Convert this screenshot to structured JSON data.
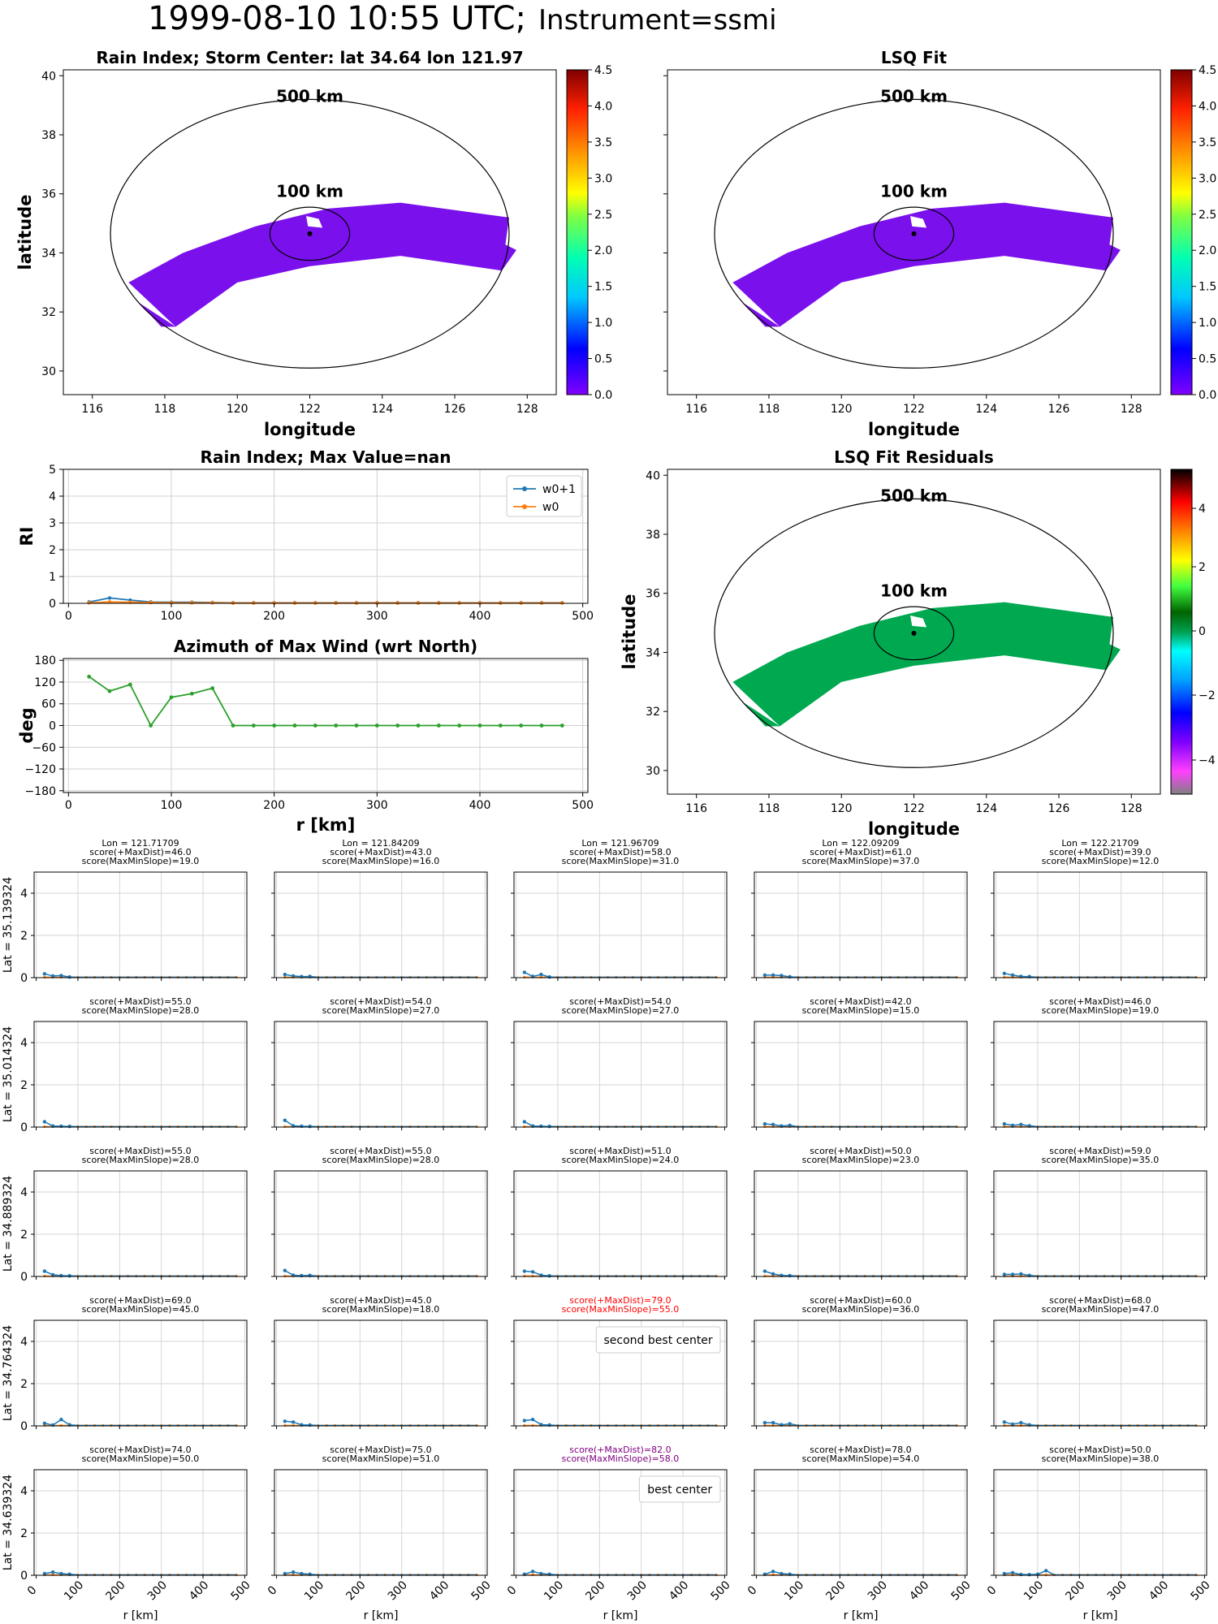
{
  "figure": {
    "title_main": "1999-08-10 10:55 UTC;",
    "title_instr": "Instrument=ssmi"
  },
  "chart_data": [
    {
      "id": "rain-index-map",
      "type": "heatmap",
      "title": "Rain Index; Storm Center: lat 34.64 lon 121.97",
      "xlabel": "longitude",
      "ylabel": "latitude",
      "xlim": [
        115.2,
        128.8
      ],
      "ylim": [
        29.2,
        40.2
      ],
      "xticks": [
        116,
        118,
        120,
        122,
        124,
        126,
        128
      ],
      "yticks": [
        30,
        32,
        34,
        36,
        38,
        40
      ],
      "center": {
        "lon": 121.97,
        "lat": 34.64
      },
      "circle_labels": [
        "500 km",
        "100 km"
      ],
      "colorbar": {
        "min": 0.0,
        "max": 4.5,
        "ticks": [
          "0.0",
          "0.5",
          "1.0",
          "1.5",
          "2.0",
          "2.5",
          "3.0",
          "3.5",
          "4.0",
          "4.5"
        ],
        "colormap": "rainbow"
      },
      "swath_value": 0.0
    },
    {
      "id": "lsq-fit-map",
      "type": "heatmap",
      "title": "LSQ Fit",
      "xlabel": "longitude",
      "xlim": [
        115.2,
        128.8
      ],
      "ylim": [
        29.2,
        40.2
      ],
      "xticks": [
        116,
        118,
        120,
        122,
        124,
        126,
        128
      ],
      "circle_labels": [
        "500 km",
        "100 km"
      ],
      "colorbar": {
        "min": 0.0,
        "max": 4.5,
        "ticks": [
          "0.0",
          "0.5",
          "1.0",
          "1.5",
          "2.0",
          "2.5",
          "3.0",
          "3.5",
          "4.0",
          "4.5"
        ],
        "colormap": "rainbow"
      },
      "swath_value": 0.0
    },
    {
      "id": "rain-index-profile",
      "type": "line",
      "title": "Rain Index; Max Value=nan",
      "ylabel": "RI",
      "xlim": [
        -5,
        505
      ],
      "ylim": [
        0,
        5
      ],
      "xticks": [
        0,
        100,
        200,
        300,
        400,
        500
      ],
      "yticks": [
        0,
        1,
        2,
        3,
        4,
        5
      ],
      "grid": true,
      "legend_position": "top-right",
      "x": [
        20,
        40,
        60,
        80,
        100,
        120,
        140,
        160,
        180,
        200,
        220,
        240,
        260,
        280,
        300,
        320,
        340,
        360,
        380,
        400,
        420,
        440,
        460,
        480
      ],
      "series": [
        {
          "name": "w0+1",
          "color": "#1f77b4",
          "values": [
            0.05,
            0.2,
            0.12,
            0.05,
            0.04,
            0.04,
            0.03,
            0.02,
            0.02,
            0.02,
            0.02,
            0.02,
            0.02,
            0.02,
            0.02,
            0.02,
            0.02,
            0.02,
            0.02,
            0.02,
            0.02,
            0.02,
            0.02,
            0.02
          ]
        },
        {
          "name": "w0",
          "color": "#ff7f0e",
          "values": [
            0.02,
            0.05,
            0.04,
            0.03,
            0.02,
            0.02,
            0.02,
            0.01,
            0.01,
            0.01,
            0.01,
            0.01,
            0.01,
            0.01,
            0.01,
            0.01,
            0.01,
            0.01,
            0.01,
            0.01,
            0.01,
            0.01,
            0.01,
            0.01
          ]
        }
      ]
    },
    {
      "id": "azimuth-max-wind",
      "type": "line",
      "title": "Azimuth of Max Wind (wrt North)",
      "xlabel": "r [km]",
      "ylabel": "deg",
      "xlim": [
        -5,
        505
      ],
      "ylim": [
        -185,
        185
      ],
      "xticks": [
        0,
        100,
        200,
        300,
        400,
        500
      ],
      "yticks": [
        180,
        120,
        60,
        0,
        -60,
        -120,
        -180
      ],
      "grid": true,
      "x": [
        20,
        40,
        60,
        80,
        100,
        120,
        140,
        160,
        180,
        200,
        220,
        240,
        260,
        280,
        300,
        320,
        340,
        360,
        380,
        400,
        420,
        440,
        460,
        480
      ],
      "series": [
        {
          "color": "#2ca02c",
          "values": [
            135,
            95,
            113,
            0,
            78,
            88,
            103,
            0,
            0,
            0,
            0,
            0,
            0,
            0,
            0,
            0,
            0,
            0,
            0,
            0,
            0,
            0,
            0,
            0
          ]
        }
      ]
    },
    {
      "id": "lsq-residuals-map",
      "type": "heatmap",
      "title": "LSQ Fit Residuals",
      "xlabel": "longitude",
      "ylabel": "latitude",
      "xlim": [
        115.2,
        128.8
      ],
      "ylim": [
        29.2,
        40.2
      ],
      "xticks": [
        116,
        118,
        120,
        122,
        124,
        126,
        128
      ],
      "yticks": [
        30,
        32,
        34,
        36,
        38,
        40
      ],
      "circle_labels": [
        "500 km",
        "100 km"
      ],
      "colorbar": {
        "min": -5,
        "max": 5,
        "ticks": [
          "4",
          "2",
          "0",
          "−2",
          "−4"
        ],
        "colormap": "ncar"
      },
      "swath_value": 0.0
    },
    {
      "id": "center-grid",
      "type": "line",
      "xlabel": "r [km]",
      "xlim": [
        -5,
        505
      ],
      "ylim": [
        0,
        5
      ],
      "xticks": [
        0,
        100,
        200,
        300,
        400,
        500
      ],
      "yticks": [
        0,
        2,
        4
      ],
      "lons": [
        "Lon = 121.71709",
        "Lon = 121.84209",
        "Lon = 121.96709",
        "Lon = 122.09209",
        "Lon = 122.21709"
      ],
      "lats": [
        "Lat = 35.139324",
        "Lat = 35.014324",
        "Lat = 34.889324",
        "Lat = 34.764324",
        "Lat = 34.639324"
      ],
      "x": [
        20,
        40,
        60,
        80,
        100,
        120,
        140,
        160,
        180,
        200,
        220,
        240,
        260,
        280,
        300,
        320,
        340,
        360,
        380,
        400,
        420,
        440,
        460,
        480
      ],
      "cells": [
        [
          {
            "s1": "score(+MaxDist)=46.0",
            "s2": "score(MaxMinSlope)=19.0",
            "peaks": [
              0.18,
              0.08,
              0.1,
              0.03
            ]
          },
          {
            "s1": "score(+MaxDist)=43.0",
            "s2": "score(MaxMinSlope)=16.0",
            "peaks": [
              0.15,
              0.08,
              0.05,
              0.06
            ]
          },
          {
            "s1": "score(+MaxDist)=58.0",
            "s2": "score(MaxMinSlope)=31.0",
            "peaks": [
              0.25,
              0.06,
              0.15,
              0.03
            ]
          },
          {
            "s1": "score(+MaxDist)=61.0",
            "s2": "score(MaxMinSlope)=37.0",
            "peaks": [
              0.12,
              0.12,
              0.1,
              0.04
            ]
          },
          {
            "s1": "score(+MaxDist)=39.0",
            "s2": "score(MaxMinSlope)=12.0",
            "peaks": [
              0.2,
              0.12,
              0.06,
              0.05
            ]
          }
        ],
        [
          {
            "s1": "score(+MaxDist)=55.0",
            "s2": "score(MaxMinSlope)=28.0",
            "peaks": [
              0.25,
              0.05,
              0.04,
              0.03
            ]
          },
          {
            "s1": "score(+MaxDist)=54.0",
            "s2": "score(MaxMinSlope)=27.0",
            "peaks": [
              0.32,
              0.06,
              0.04,
              0.03
            ]
          },
          {
            "s1": "score(+MaxDist)=54.0",
            "s2": "score(MaxMinSlope)=27.0",
            "peaks": [
              0.25,
              0.05,
              0.04,
              0.03
            ]
          },
          {
            "s1": "score(+MaxDist)=42.0",
            "s2": "score(MaxMinSlope)=15.0",
            "peaks": [
              0.15,
              0.12,
              0.05,
              0.08
            ]
          },
          {
            "s1": "score(+MaxDist)=46.0",
            "s2": "score(MaxMinSlope)=19.0",
            "peaks": [
              0.15,
              0.08,
              0.12,
              0.06
            ]
          }
        ],
        [
          {
            "s1": "score(+MaxDist)=55.0",
            "s2": "score(MaxMinSlope)=28.0",
            "peaks": [
              0.25,
              0.08,
              0.04,
              0.03
            ]
          },
          {
            "s1": "score(+MaxDist)=55.0",
            "s2": "score(MaxMinSlope)=28.0",
            "peaks": [
              0.28,
              0.06,
              0.04,
              0.05
            ]
          },
          {
            "s1": "score(+MaxDist)=51.0",
            "s2": "score(MaxMinSlope)=24.0",
            "peaks": [
              0.25,
              0.22,
              0.06,
              0.03
            ]
          },
          {
            "s1": "score(+MaxDist)=50.0",
            "s2": "score(MaxMinSlope)=23.0",
            "peaks": [
              0.25,
              0.12,
              0.05,
              0.04
            ]
          },
          {
            "s1": "score(+MaxDist)=59.0",
            "s2": "score(MaxMinSlope)=35.0",
            "peaks": [
              0.1,
              0.1,
              0.12,
              0.05
            ]
          }
        ],
        [
          {
            "s1": "score(+MaxDist)=69.0",
            "s2": "score(MaxMinSlope)=45.0",
            "peaks": [
              0.12,
              0.04,
              0.3,
              0.05
            ]
          },
          {
            "s1": "score(+MaxDist)=45.0",
            "s2": "score(MaxMinSlope)=18.0",
            "peaks": [
              0.22,
              0.18,
              0.05,
              0.04
            ]
          },
          {
            "s1": "score(+MaxDist)=79.0",
            "s2": "score(MaxMinSlope)=55.0",
            "peaks": [
              0.25,
              0.3,
              0.06,
              0.04
            ],
            "color": "#ff0000",
            "annotation": "second best center"
          },
          {
            "s1": "score(+MaxDist)=60.0",
            "s2": "score(MaxMinSlope)=36.0",
            "peaks": [
              0.15,
              0.15,
              0.05,
              0.1
            ]
          },
          {
            "s1": "score(+MaxDist)=68.0",
            "s2": "score(MaxMinSlope)=47.0",
            "peaks": [
              0.18,
              0.08,
              0.15,
              0.05
            ]
          }
        ],
        [
          {
            "s1": "score(+MaxDist)=74.0",
            "s2": "score(MaxMinSlope)=50.0",
            "peaks": [
              0.08,
              0.15,
              0.08,
              0.05
            ]
          },
          {
            "s1": "score(+MaxDist)=75.0",
            "s2": "score(MaxMinSlope)=51.0",
            "peaks": [
              0.08,
              0.15,
              0.08,
              0.05
            ]
          },
          {
            "s1": "score(+MaxDist)=82.0",
            "s2": "score(MaxMinSlope)=58.0",
            "peaks": [
              0.05,
              0.18,
              0.08,
              0.05
            ],
            "color": "#800080",
            "annotation": "best center"
          },
          {
            "s1": "score(+MaxDist)=78.0",
            "s2": "score(MaxMinSlope)=54.0",
            "peaks": [
              0.05,
              0.18,
              0.08,
              0.05
            ]
          },
          {
            "s1": "score(+MaxDist)=50.0",
            "s2": "score(MaxMinSlope)=38.0",
            "peaks": [
              0.08,
              0.12,
              0.04,
              0.03,
              0.05,
              0.22
            ]
          }
        ]
      ]
    }
  ]
}
